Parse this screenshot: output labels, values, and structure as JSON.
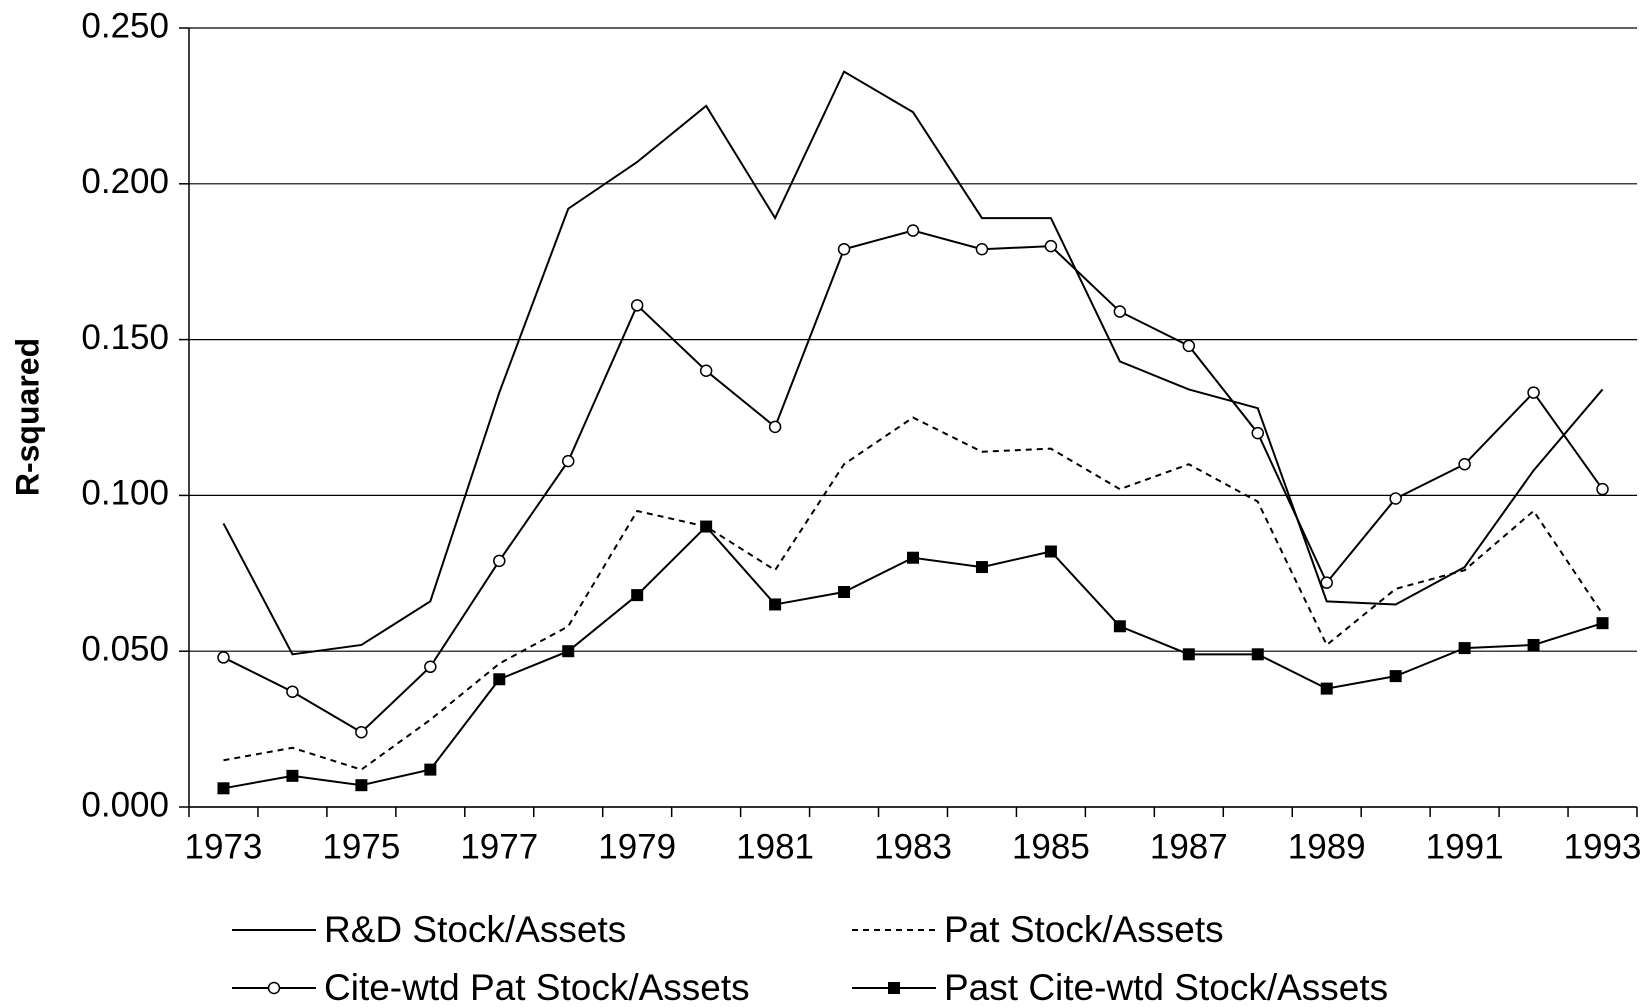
{
  "chart_data": {
    "type": "line",
    "y_label": "R-squared",
    "categories": [
      "1973",
      null,
      "1975",
      null,
      "1977",
      null,
      "1979",
      null,
      "1981",
      null,
      "1983",
      null,
      "1985",
      null,
      "1987",
      null,
      "1989",
      null,
      "1991",
      null,
      "1993"
    ],
    "series": [
      {
        "name": "R&D Stock/Assets",
        "color": "#000000",
        "line_style": "solid",
        "marker": "none",
        "values": [
          0.091,
          0.049,
          0.052,
          0.066,
          0.133,
          0.192,
          0.207,
          0.225,
          0.189,
          0.236,
          0.223,
          0.189,
          0.189,
          0.143,
          0.134,
          0.128,
          0.066,
          0.065,
          0.077,
          0.108,
          0.134
        ]
      },
      {
        "name": "Pat Stock/Assets",
        "color": "#000000",
        "line_style": "dashed",
        "marker": "none",
        "values": [
          0.015,
          0.019,
          0.012,
          0.028,
          0.046,
          0.058,
          0.095,
          0.09,
          0.076,
          0.11,
          0.125,
          0.114,
          0.115,
          0.102,
          0.11,
          0.098,
          0.052,
          0.07,
          0.076,
          0.095,
          0.062
        ]
      },
      {
        "name": "Cite-wtd Pat Stock/Assets",
        "color": "#000000",
        "line_style": "solid",
        "marker": "circle",
        "values": [
          0.048,
          0.037,
          0.024,
          0.045,
          0.079,
          0.111,
          0.161,
          0.14,
          0.122,
          0.179,
          0.185,
          0.179,
          0.18,
          0.159,
          0.148,
          0.12,
          0.072,
          0.099,
          0.11,
          0.133,
          0.102
        ]
      },
      {
        "name": "Past Cite-wtd Stock/Assets",
        "color": "#000000",
        "line_style": "solid",
        "marker": "square",
        "values": [
          0.006,
          0.01,
          0.007,
          0.012,
          0.041,
          0.05,
          0.068,
          0.09,
          0.065,
          0.069,
          0.08,
          0.077,
          0.082,
          0.058,
          0.049,
          0.049,
          0.038,
          0.042,
          0.051,
          0.052,
          0.059
        ]
      }
    ],
    "ylim": [
      0,
      0.25
    ],
    "yticks": [
      {
        "value": 0,
        "label": "0.000"
      },
      {
        "value": 0.05,
        "label": "0.050"
      },
      {
        "value": 0.1,
        "label": "0.100"
      },
      {
        "value": 0.15,
        "label": "0.150"
      },
      {
        "value": 0.2,
        "label": "0.200"
      },
      {
        "value": 0.25,
        "label": "0.250"
      }
    ],
    "grid": true,
    "legend": "bottom"
  }
}
